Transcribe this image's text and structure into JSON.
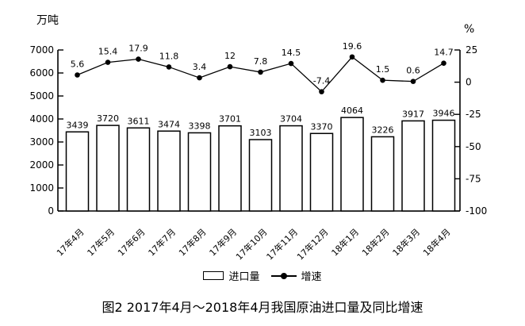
{
  "chart": {
    "caption": "图2 2017年4月～2018年4月我国原油进口量及同比增速"
  },
  "chart_data": {
    "type": "bar+line",
    "title": "图2 2017年4月～2018年4月我国原油进口量及同比增速",
    "categories": [
      "17年4月",
      "17年5月",
      "17年6月",
      "17年7月",
      "17年8月",
      "17年9月",
      "17年10月",
      "17年11月",
      "17年12月",
      "18年1月",
      "18年2月",
      "18年3月",
      "18年4月"
    ],
    "series": [
      {
        "name": "进口量",
        "type": "bar",
        "axis": "left",
        "unit": "万吨",
        "values": [
          3439,
          3720,
          3611,
          3474,
          3398,
          3701,
          3103,
          3704,
          3370,
          4064,
          3226,
          3917,
          3946
        ]
      },
      {
        "name": "增速",
        "type": "line",
        "axis": "right",
        "unit": "%",
        "values": [
          5.6,
          15.4,
          17.9,
          11.8,
          3.4,
          12,
          7.8,
          14.5,
          -7.4,
          19.6,
          1.5,
          0.6,
          14.7
        ]
      }
    ],
    "left_axis": {
      "label": "万吨",
      "min": 0,
      "max": 7000,
      "step": 1000,
      "ticks": [
        0,
        1000,
        2000,
        3000,
        4000,
        5000,
        6000,
        7000
      ]
    },
    "right_axis": {
      "label": "%",
      "min": -100,
      "max": 25,
      "step": 25,
      "ticks": [
        -100,
        -75,
        -50,
        -25,
        0,
        25
      ]
    },
    "grid": false,
    "legend_position": "bottom",
    "data_labels": true,
    "colors": {
      "stroke": "#000000",
      "bar_fill": "#ffffff",
      "background": "#ffffff"
    }
  }
}
